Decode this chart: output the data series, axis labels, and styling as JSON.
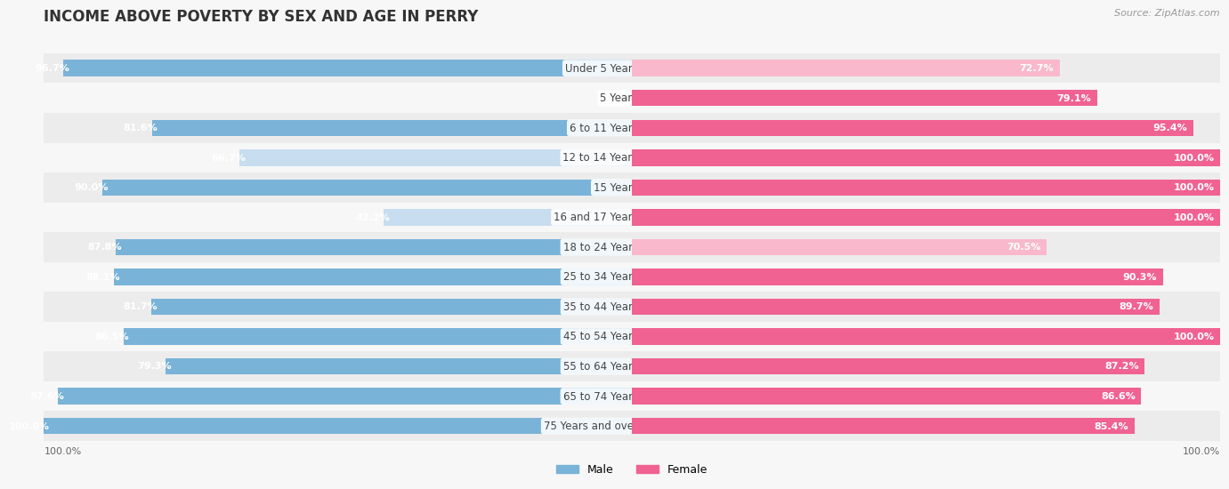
{
  "title": "INCOME ABOVE POVERTY BY SEX AND AGE IN PERRY",
  "source": "Source: ZipAtlas.com",
  "categories": [
    "Under 5 Years",
    "5 Years",
    "6 to 11 Years",
    "12 to 14 Years",
    "15 Years",
    "16 and 17 Years",
    "18 to 24 Years",
    "25 to 34 Years",
    "35 to 44 Years",
    "45 to 54 Years",
    "55 to 64 Years",
    "65 to 74 Years",
    "75 Years and over"
  ],
  "male_values": [
    96.7,
    0.0,
    81.6,
    66.7,
    90.0,
    42.2,
    87.8,
    88.1,
    81.7,
    86.5,
    79.3,
    97.6,
    100.0
  ],
  "female_values": [
    72.7,
    79.1,
    95.4,
    100.0,
    100.0,
    100.0,
    70.5,
    90.3,
    89.7,
    100.0,
    87.2,
    86.6,
    85.4
  ],
  "male_color_full": "#7ab3d8",
  "male_color_light": "#c8ddef",
  "female_color_full": "#f06292",
  "female_color_light": "#f9b8cc",
  "background_color": "#f7f7f7",
  "row_bg_color": "#ebebeb",
  "title_fontsize": 12,
  "label_fontsize": 8.5,
  "value_fontsize": 8,
  "legend_fontsize": 9,
  "source_fontsize": 8,
  "bottom_label": "100.0%",
  "male_light_threshold": 70,
  "female_light_threshold": 75
}
